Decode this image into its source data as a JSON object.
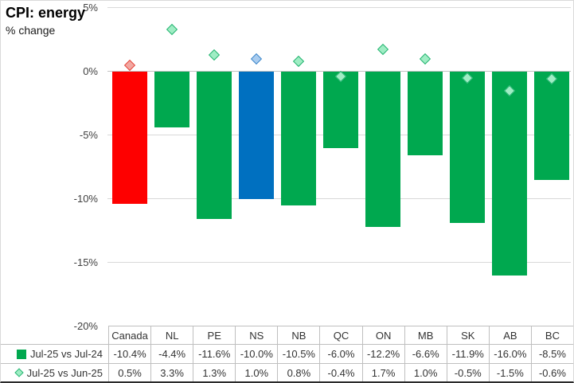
{
  "header": {
    "title": "CPI: energy",
    "subtitle": "% change"
  },
  "chart_data": {
    "type": "bar",
    "title": "CPI: energy",
    "ylabel": "% change",
    "categories": [
      "Canada",
      "NL",
      "PE",
      "NS",
      "NB",
      "QC",
      "ON",
      "MB",
      "SK",
      "AB",
      "BC"
    ],
    "series": [
      {
        "name": "Jul-25 vs Jul-24",
        "type": "bar",
        "values": [
          -10.4,
          -4.4,
          -11.6,
          -10.0,
          -10.5,
          -6.0,
          -12.2,
          -6.6,
          -11.9,
          -16.0,
          -8.5
        ],
        "colors": [
          "#FE0000",
          "#00A84F",
          "#00A84F",
          "#0070C0",
          "#00A84F",
          "#00A84F",
          "#00A84F",
          "#00A84F",
          "#00A84F",
          "#00A84F",
          "#00A84F"
        ]
      },
      {
        "name": "Jul-25 vs Jun-25",
        "type": "scatter",
        "marker": "diamond",
        "values": [
          0.5,
          3.3,
          1.3,
          1.0,
          0.8,
          -0.4,
          1.7,
          1.0,
          -0.5,
          -1.5,
          -0.6
        ],
        "marker_fill": [
          "#F2A7A1",
          "#9FEDC4",
          "#9FEDC4",
          "#A9CCEF",
          "#9FEDC4",
          "#9FEDC4",
          "#9FEDC4",
          "#9FEDC4",
          "#9FEDC4",
          "#9FEDC4",
          "#9FEDC4"
        ],
        "marker_stroke": [
          "#E5493F",
          "#28B573",
          "#28B573",
          "#4189CB",
          "#28B573",
          "#28B573",
          "#28B573",
          "#28B573",
          "#28B573",
          "#28B573",
          "#28B573"
        ]
      }
    ],
    "ylim": [
      -20,
      5
    ],
    "yticks": [
      5,
      0,
      -5,
      -10,
      -15,
      -20
    ],
    "ytick_labels": [
      "5%",
      "0%",
      "-5%",
      "-10%",
      "-15%",
      "-20%"
    ],
    "grid": true,
    "legend_position": "data-table-left",
    "data_table": {
      "column_headers": [
        "Canada",
        "NL",
        "PE",
        "NS",
        "NB",
        "QC",
        "ON",
        "MB",
        "SK",
        "AB",
        "BC"
      ],
      "rows": [
        {
          "label": "Jul-25 vs Jul-24",
          "marker": "square-icon",
          "marker_fill": "#00A84F",
          "marker_stroke": "#00A84F",
          "values": [
            "-10.4%",
            "-4.4%",
            "-11.6%",
            "-10.0%",
            "-10.5%",
            "-6.0%",
            "-12.2%",
            "-6.6%",
            "-11.9%",
            "-16.0%",
            "-8.5%"
          ]
        },
        {
          "label": "Jul-25 vs Jun-25",
          "marker": "diamond-icon",
          "marker_fill": "#9FEDC4",
          "marker_stroke": "#28B573",
          "values": [
            "0.5%",
            "3.3%",
            "1.3%",
            "1.0%",
            "0.8%",
            "-0.4%",
            "1.7%",
            "1.0%",
            "-0.5%",
            "-1.5%",
            "-0.6%"
          ]
        }
      ]
    },
    "colors": {
      "gridline": "#D9D9D9",
      "axis_line": "#C3C3C3",
      "table_border": "#BFBFBF",
      "text": "#333333",
      "background": "#FFFFFF"
    }
  }
}
